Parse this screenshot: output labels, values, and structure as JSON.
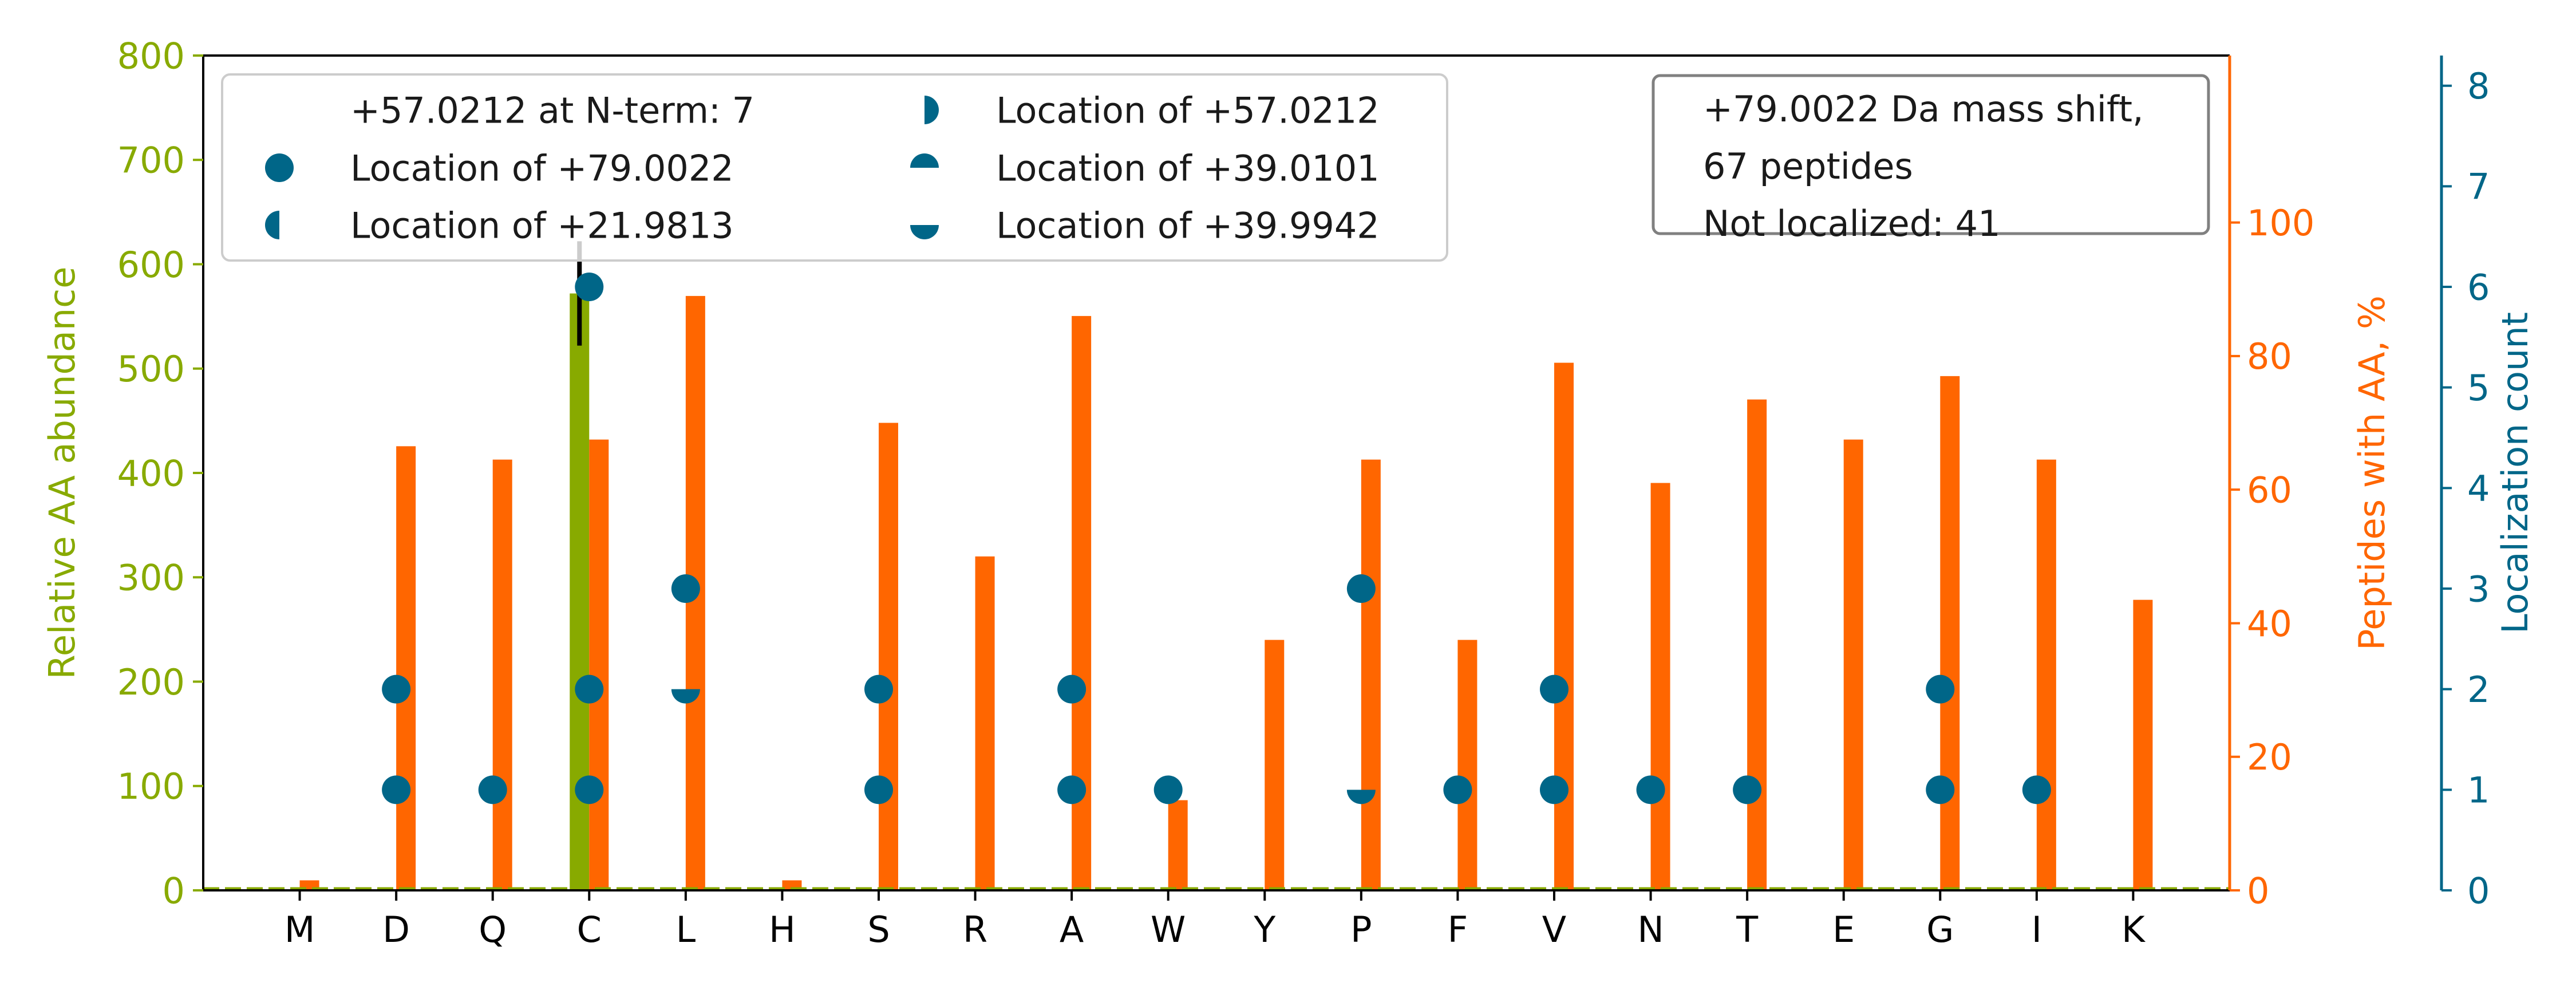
{
  "chart_data": {
    "type": "bar",
    "categories": [
      "M",
      "D",
      "Q",
      "C",
      "L",
      "H",
      "S",
      "R",
      "A",
      "W",
      "Y",
      "P",
      "F",
      "V",
      "N",
      "T",
      "E",
      "G",
      "I",
      "K"
    ],
    "left_axis": {
      "label": "Relative AA abundance",
      "ylim": [
        0,
        800
      ],
      "ticks": [
        "0",
        "100",
        "200",
        "300",
        "400",
        "500",
        "600",
        "700",
        "800"
      ],
      "color": "#88aa00"
    },
    "right_axis_1": {
      "label": "Peptides with AA, %",
      "ylim": [
        0,
        125
      ],
      "ticks": [
        "0",
        "20",
        "40",
        "60",
        "80",
        "100"
      ],
      "color": "#ff6600"
    },
    "right_axis_2": {
      "label": "Localization count",
      "ylim": [
        0,
        8.3
      ],
      "ticks": [
        "0",
        "1",
        "2",
        "3",
        "4",
        "5",
        "6",
        "7",
        "8"
      ],
      "color": "#006688"
    },
    "series": [
      {
        "name": "Relative AA abundance",
        "axis": "left",
        "values": [
          0,
          0,
          0,
          572,
          0,
          0,
          0,
          0,
          0,
          0,
          0,
          0,
          0,
          0,
          0,
          0,
          0,
          0,
          0,
          0
        ],
        "errors": [
          0,
          0,
          0,
          50,
          0,
          0,
          0,
          0,
          0,
          0,
          0,
          0,
          0,
          0,
          0,
          0,
          0,
          0,
          0,
          0
        ]
      },
      {
        "name": "Peptides with AA, %",
        "axis": "right1",
        "values": [
          1.5,
          66.5,
          64.5,
          67.5,
          89,
          1.5,
          70,
          50,
          86,
          13.5,
          37.5,
          64.5,
          37.5,
          79,
          61,
          73.5,
          67.5,
          77,
          64.5,
          43.5
        ]
      }
    ],
    "markers": [
      {
        "cat": "C",
        "count": 6,
        "shape": "full"
      },
      {
        "cat": "D",
        "count": 2,
        "shape": "full"
      },
      {
        "cat": "D",
        "count": 1,
        "shape": "full"
      },
      {
        "cat": "Q",
        "count": 1,
        "shape": "full"
      },
      {
        "cat": "C",
        "count": 2,
        "shape": "full"
      },
      {
        "cat": "C",
        "count": 1,
        "shape": "full"
      },
      {
        "cat": "L",
        "count": 3,
        "shape": "full"
      },
      {
        "cat": "L",
        "count": 2,
        "shape": "bottom"
      },
      {
        "cat": "S",
        "count": 2,
        "shape": "full"
      },
      {
        "cat": "S",
        "count": 1,
        "shape": "full"
      },
      {
        "cat": "A",
        "count": 2,
        "shape": "full"
      },
      {
        "cat": "A",
        "count": 1,
        "shape": "full"
      },
      {
        "cat": "W",
        "count": 1,
        "shape": "full"
      },
      {
        "cat": "P",
        "count": 3,
        "shape": "full"
      },
      {
        "cat": "P",
        "count": 1,
        "shape": "bottom"
      },
      {
        "cat": "F",
        "count": 1,
        "shape": "full"
      },
      {
        "cat": "V",
        "count": 2,
        "shape": "full"
      },
      {
        "cat": "V",
        "count": 1,
        "shape": "full"
      },
      {
        "cat": "N",
        "count": 1,
        "shape": "full"
      },
      {
        "cat": "T",
        "count": 1,
        "shape": "full"
      },
      {
        "cat": "G",
        "count": 2,
        "shape": "full"
      },
      {
        "cat": "G",
        "count": 1,
        "shape": "full"
      },
      {
        "cat": "I",
        "count": 1,
        "shape": "full"
      }
    ],
    "legend": {
      "placement": "upper-left",
      "entries": [
        {
          "label": "+57.0212 at N-term: 7",
          "shape": "none"
        },
        {
          "label": "Location of +79.0022",
          "shape": "full"
        },
        {
          "label": "Location of +21.9813",
          "shape": "left"
        },
        {
          "label": "Location of +57.0212",
          "shape": "right"
        },
        {
          "label": "Location of +39.0101",
          "shape": "top"
        },
        {
          "label": "Location of +39.9942",
          "shape": "bottom"
        }
      ]
    },
    "annotation": {
      "placement": "upper-right",
      "lines": [
        "+79.0022 Da mass shift,",
        "67 peptides",
        "Not localized: 41"
      ]
    }
  }
}
